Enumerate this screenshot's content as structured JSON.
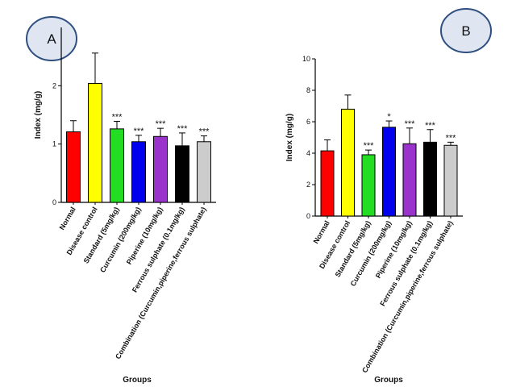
{
  "chart_data": [
    {
      "type": "bar",
      "panel_label": "A",
      "categories": [
        "Normal",
        "Disease control",
        "Standard (5mg/kg)",
        "Curcumin (200mg/kg)",
        "Piperine (10mg/kg)",
        "Ferrous sulphate (0.1mg/kg)",
        "Combination (Curcumin,piperine,ferrous sulphate)"
      ],
      "values": [
        1.21,
        2.04,
        1.26,
        1.04,
        1.13,
        0.97,
        1.04
      ],
      "errors": [
        0.19,
        0.52,
        0.13,
        0.11,
        0.14,
        0.22,
        0.1
      ],
      "significance": [
        "",
        "",
        "***",
        "***",
        "***",
        "***",
        "***"
      ],
      "colors": [
        "#ff0000",
        "#ffff00",
        "#22dd22",
        "#0000ee",
        "#9933cc",
        "#000000",
        "#cccccc"
      ],
      "ylabel": "Index (mg/g)",
      "xlabel": "Groups",
      "ylim": [
        0,
        3
      ],
      "yticks": [
        "0",
        "1",
        "2"
      ]
    },
    {
      "type": "bar",
      "panel_label": "B",
      "categories": [
        "Normal",
        "Disease control",
        "Standard (5mg/kg)",
        "Curcumin (200mg/kg)",
        "Piperine (10mg/kg)",
        "Ferrous sulphate (0.1mg/kg)",
        "Combination (Curcumin,piperine,ferrous sulphate)"
      ],
      "values": [
        4.15,
        6.8,
        3.9,
        5.65,
        4.6,
        4.7,
        4.5
      ],
      "errors": [
        0.7,
        0.9,
        0.3,
        0.4,
        1.0,
        0.8,
        0.2
      ],
      "significance": [
        "",
        "",
        "***",
        "*",
        "***",
        "***",
        "***"
      ],
      "colors": [
        "#ff0000",
        "#ffff00",
        "#22dd22",
        "#0000ee",
        "#9933cc",
        "#000000",
        "#cccccc"
      ],
      "ylabel": "Index (mg/g)",
      "xlabel": "Groups",
      "ylim": [
        0,
        10
      ],
      "yticks": [
        "0",
        "2",
        "4",
        "6",
        "8",
        "10"
      ]
    }
  ]
}
